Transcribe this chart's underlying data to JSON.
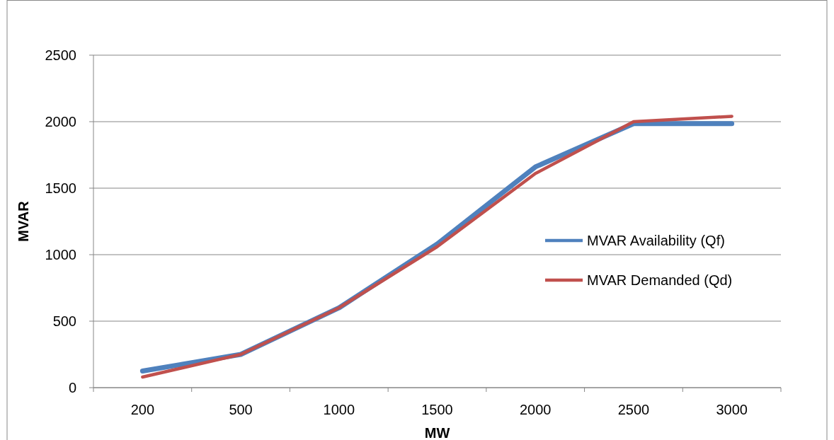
{
  "chart_data": {
    "type": "line",
    "xlabel": "MW",
    "ylabel": "MVAR",
    "categories": [
      "200",
      "500",
      "1000",
      "1500",
      "2000",
      "2500",
      "3000"
    ],
    "series": [
      {
        "name": "MVAR Availability (Qf)",
        "color": "#4f81bd",
        "values": [
          125,
          250,
          600,
          1080,
          1660,
          1985,
          1985
        ]
      },
      {
        "name": "MVAR Demanded (Qd)",
        "color": "#c0504d",
        "values": [
          80,
          250,
          600,
          1060,
          1610,
          2000,
          2040
        ]
      }
    ],
    "ylim": [
      0,
      2500
    ],
    "yticks": [
      0,
      500,
      1000,
      1500,
      2000,
      2500
    ],
    "grid": "y",
    "legend": "right",
    "marker": "none",
    "line_style": "solid"
  }
}
